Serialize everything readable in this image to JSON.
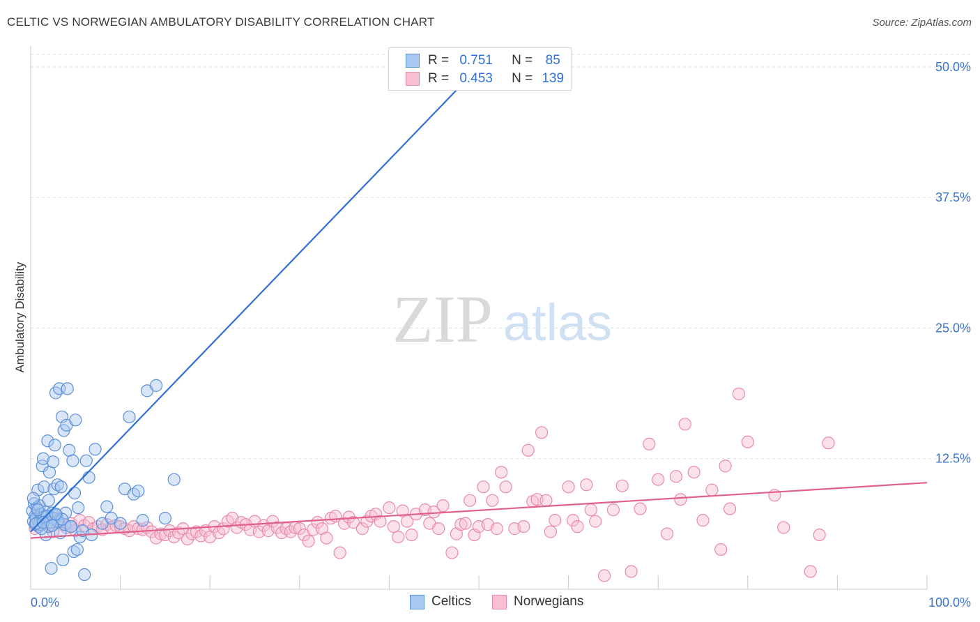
{
  "title": "CELTIC VS NORWEGIAN AMBULATORY DISABILITY CORRELATION CHART",
  "source": "Source: ZipAtlas.com",
  "watermark": {
    "zip": "ZIP",
    "atlas": "atlas"
  },
  "colors": {
    "celtic_fill": "#a8c8f0",
    "celtic_stroke": "#5b8fd8",
    "celtic_line": "#2f6fd6",
    "norwegian_fill": "#f7bfd0",
    "norwegian_stroke": "#e98aaa",
    "norwegian_line": "#e0608a",
    "axis_label": "#3c74c8",
    "grid": "#dddddd"
  },
  "legend_top": {
    "celtic": {
      "r_label": "R =",
      "r_value": "0.751",
      "n_label": "N =",
      "n_value": "85"
    },
    "norwegian": {
      "r_label": "R =",
      "r_value": "0.453",
      "n_label": "N =",
      "n_value": "139"
    }
  },
  "legend_bottom": {
    "celtic": "Celtics",
    "norwegian": "Norwegians"
  },
  "chart_data": {
    "type": "scatter",
    "title": "CELTIC VS NORWEGIAN AMBULATORY DISABILITY CORRELATION CHART",
    "xlabel": "",
    "ylabel": "Ambulatory Disability",
    "xlim": [
      0,
      100
    ],
    "ylim": [
      0,
      52
    ],
    "x_tick_labels": [
      "0.0%",
      "100.0%"
    ],
    "y_ticks": [
      12.5,
      25.0,
      37.5,
      50.0
    ],
    "y_tick_labels": [
      "12.5%",
      "25.0%",
      "37.5%",
      "50.0%"
    ],
    "grid": "horizontal dashed",
    "series": [
      {
        "name": "Celtics",
        "R": 0.751,
        "N": 85,
        "trend": {
          "x": [
            0.0,
            50.0
          ],
          "y": [
            5.5,
            50.0
          ]
        },
        "points": [
          [
            0.2,
            7.5
          ],
          [
            0.3,
            6.5
          ],
          [
            0.4,
            8.2
          ],
          [
            0.5,
            7.0
          ],
          [
            0.6,
            6.8
          ],
          [
            0.7,
            7.8
          ],
          [
            0.8,
            9.5
          ],
          [
            0.9,
            6.0
          ],
          [
            1.0,
            8.0
          ],
          [
            1.1,
            6.6
          ],
          [
            1.2,
            7.2
          ],
          [
            1.3,
            11.8
          ],
          [
            1.4,
            12.5
          ],
          [
            1.5,
            9.8
          ],
          [
            1.6,
            7.4
          ],
          [
            1.7,
            5.2
          ],
          [
            1.8,
            6.3
          ],
          [
            1.9,
            14.2
          ],
          [
            2.0,
            8.5
          ],
          [
            2.1,
            11.2
          ],
          [
            2.2,
            6.9
          ],
          [
            2.3,
            2.0
          ],
          [
            2.4,
            7.3
          ],
          [
            2.5,
            12.2
          ],
          [
            2.6,
            9.6
          ],
          [
            2.7,
            13.8
          ],
          [
            2.8,
            18.8
          ],
          [
            2.9,
            7.1
          ],
          [
            3.0,
            10.0
          ],
          [
            3.1,
            6.4
          ],
          [
            3.2,
            19.2
          ],
          [
            3.3,
            5.4
          ],
          [
            3.4,
            9.8
          ],
          [
            3.5,
            16.5
          ],
          [
            3.6,
            2.8
          ],
          [
            3.7,
            15.2
          ],
          [
            3.8,
            6.2
          ],
          [
            3.9,
            7.3
          ],
          [
            4.0,
            15.7
          ],
          [
            4.1,
            19.2
          ],
          [
            4.3,
            13.3
          ],
          [
            4.5,
            6.0
          ],
          [
            4.7,
            12.3
          ],
          [
            4.8,
            3.6
          ],
          [
            4.9,
            9.2
          ],
          [
            5.0,
            16.2
          ],
          [
            5.2,
            3.8
          ],
          [
            5.3,
            7.8
          ],
          [
            5.5,
            5.0
          ],
          [
            5.8,
            5.6
          ],
          [
            6.0,
            1.4
          ],
          [
            6.2,
            12.3
          ],
          [
            6.5,
            10.7
          ],
          [
            6.8,
            5.2
          ],
          [
            7.2,
            13.4
          ],
          [
            8.0,
            6.3
          ],
          [
            8.5,
            7.9
          ],
          [
            9.0,
            6.8
          ],
          [
            10.0,
            6.3
          ],
          [
            10.5,
            9.6
          ],
          [
            11.0,
            16.5
          ],
          [
            11.5,
            9.1
          ],
          [
            12.0,
            9.4
          ],
          [
            12.5,
            6.6
          ],
          [
            13.0,
            19.0
          ],
          [
            14.0,
            19.5
          ],
          [
            15.0,
            6.8
          ],
          [
            16.0,
            10.5
          ],
          [
            1.0,
            6.2
          ],
          [
            2.0,
            6.0
          ],
          [
            3.0,
            6.5
          ],
          [
            0.5,
            6.2
          ],
          [
            1.5,
            6.9
          ],
          [
            2.5,
            6.8
          ],
          [
            3.5,
            6.7
          ],
          [
            4.5,
            6.0
          ],
          [
            0.8,
            7.6
          ],
          [
            1.2,
            5.8
          ],
          [
            2.2,
            6.4
          ],
          [
            0.3,
            8.7
          ],
          [
            1.8,
            7.0
          ],
          [
            2.8,
            7.2
          ],
          [
            0.6,
            6.3
          ],
          [
            1.4,
            6.4
          ],
          [
            2.4,
            6.1
          ]
        ]
      },
      {
        "name": "Norwegians",
        "R": 0.453,
        "N": 139,
        "trend": {
          "x": [
            0.0,
            100.0
          ],
          "y": [
            4.9,
            10.2
          ]
        },
        "points": [
          [
            0.5,
            5.8
          ],
          [
            1.0,
            6.5
          ],
          [
            1.5,
            7.0
          ],
          [
            2.0,
            6.0
          ],
          [
            2.5,
            5.5
          ],
          [
            3.0,
            6.8
          ],
          [
            3.5,
            6.2
          ],
          [
            4.0,
            5.9
          ],
          [
            4.5,
            6.3
          ],
          [
            5.0,
            5.6
          ],
          [
            5.5,
            6.6
          ],
          [
            6.0,
            6.1
          ],
          [
            6.5,
            6.4
          ],
          [
            7.0,
            5.8
          ],
          [
            7.5,
            6.0
          ],
          [
            8.0,
            5.7
          ],
          [
            8.5,
            6.2
          ],
          [
            9.0,
            5.9
          ],
          [
            9.5,
            6.1
          ],
          [
            10.0,
            6.0
          ],
          [
            10.5,
            5.8
          ],
          [
            11.0,
            5.6
          ],
          [
            11.5,
            6.0
          ],
          [
            12.0,
            5.8
          ],
          [
            12.5,
            5.7
          ],
          [
            13.0,
            5.9
          ],
          [
            13.5,
            5.5
          ],
          [
            14.0,
            4.9
          ],
          [
            14.5,
            5.3
          ],
          [
            15.0,
            5.2
          ],
          [
            15.5,
            5.6
          ],
          [
            16.0,
            5.0
          ],
          [
            16.5,
            5.4
          ],
          [
            17.0,
            5.8
          ],
          [
            17.5,
            4.8
          ],
          [
            18.0,
            5.3
          ],
          [
            18.5,
            5.5
          ],
          [
            19.0,
            5.1
          ],
          [
            19.5,
            5.6
          ],
          [
            20.0,
            5.0
          ],
          [
            20.5,
            6.0
          ],
          [
            21.0,
            5.4
          ],
          [
            21.5,
            5.8
          ],
          [
            22.0,
            6.5
          ],
          [
            22.5,
            6.8
          ],
          [
            23.0,
            5.9
          ],
          [
            23.5,
            6.4
          ],
          [
            24.0,
            6.2
          ],
          [
            24.5,
            5.7
          ],
          [
            25.0,
            6.5
          ],
          [
            25.5,
            5.5
          ],
          [
            26.0,
            6.1
          ],
          [
            26.5,
            5.6
          ],
          [
            27.0,
            6.5
          ],
          [
            27.5,
            5.9
          ],
          [
            28.0,
            5.4
          ],
          [
            28.5,
            5.8
          ],
          [
            29.0,
            5.5
          ],
          [
            29.5,
            5.9
          ],
          [
            30.0,
            5.8
          ],
          [
            30.5,
            5.2
          ],
          [
            31.0,
            4.6
          ],
          [
            31.5,
            5.7
          ],
          [
            32.0,
            6.4
          ],
          [
            32.5,
            5.8
          ],
          [
            33.0,
            4.9
          ],
          [
            33.5,
            6.8
          ],
          [
            34.0,
            7.0
          ],
          [
            34.5,
            3.5
          ],
          [
            35.0,
            6.3
          ],
          [
            35.5,
            6.9
          ],
          [
            36.0,
            6.4
          ],
          [
            37.0,
            5.8
          ],
          [
            37.5,
            6.5
          ],
          [
            38.0,
            7.0
          ],
          [
            38.5,
            7.2
          ],
          [
            39.0,
            6.5
          ],
          [
            40.0,
            7.8
          ],
          [
            40.5,
            6.0
          ],
          [
            41.0,
            5.0
          ],
          [
            41.5,
            7.5
          ],
          [
            42.0,
            6.5
          ],
          [
            42.5,
            5.2
          ],
          [
            43.0,
            7.2
          ],
          [
            44.0,
            7.6
          ],
          [
            44.5,
            6.3
          ],
          [
            45.0,
            7.4
          ],
          [
            45.5,
            5.8
          ],
          [
            46.0,
            8.0
          ],
          [
            47.0,
            3.5
          ],
          [
            47.5,
            5.3
          ],
          [
            48.0,
            6.2
          ],
          [
            48.5,
            6.3
          ],
          [
            49.0,
            8.5
          ],
          [
            49.5,
            5.2
          ],
          [
            50.0,
            6.0
          ],
          [
            50.5,
            9.8
          ],
          [
            51.0,
            6.2
          ],
          [
            51.5,
            8.5
          ],
          [
            52.0,
            5.8
          ],
          [
            52.5,
            11.2
          ],
          [
            53.0,
            9.8
          ],
          [
            54.0,
            5.8
          ],
          [
            55.0,
            6.0
          ],
          [
            55.5,
            13.3
          ],
          [
            56.0,
            8.4
          ],
          [
            56.5,
            8.6
          ],
          [
            57.0,
            15.0
          ],
          [
            57.5,
            8.5
          ],
          [
            58.0,
            5.5
          ],
          [
            58.5,
            6.6
          ],
          [
            60.0,
            9.8
          ],
          [
            60.5,
            6.6
          ],
          [
            61.0,
            6.0
          ],
          [
            62.0,
            10.0
          ],
          [
            62.5,
            7.6
          ],
          [
            63.0,
            6.5
          ],
          [
            64.0,
            1.3
          ],
          [
            65.0,
            7.6
          ],
          [
            66.0,
            9.9
          ],
          [
            67.0,
            1.7
          ],
          [
            68.0,
            7.7
          ],
          [
            69.0,
            13.9
          ],
          [
            70.0,
            10.5
          ],
          [
            71.0,
            5.3
          ],
          [
            72.0,
            10.8
          ],
          [
            72.5,
            8.6
          ],
          [
            73.0,
            15.8
          ],
          [
            74.0,
            11.2
          ],
          [
            75.0,
            6.6
          ],
          [
            76.0,
            9.5
          ],
          [
            77.0,
            3.8
          ],
          [
            77.5,
            11.8
          ],
          [
            78.0,
            7.7
          ],
          [
            79.0,
            18.7
          ],
          [
            80.0,
            14.1
          ],
          [
            83.0,
            9.0
          ],
          [
            84.0,
            5.9
          ],
          [
            87.0,
            1.7
          ],
          [
            88.0,
            5.2
          ],
          [
            89.0,
            14.0
          ]
        ]
      }
    ]
  }
}
